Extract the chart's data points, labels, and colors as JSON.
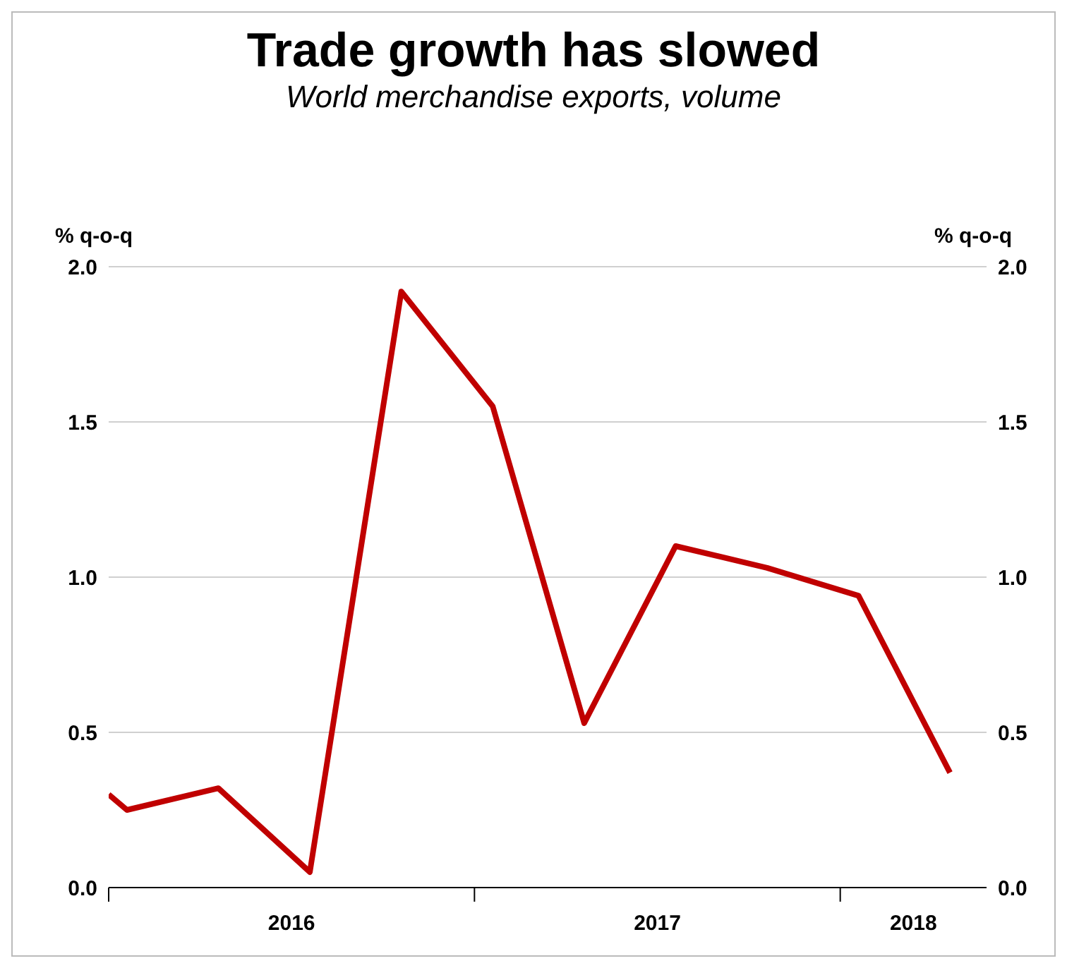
{
  "chart_data": {
    "type": "line",
    "title": "Trade growth has slowed",
    "subtitle": "World merchandise exports, volume",
    "ylabel": "% q-o-q",
    "y2label": "% q-o-q",
    "x": [
      2016,
      2016.05,
      2016.3,
      2016.55,
      2016.8,
      2017.05,
      2017.3,
      2017.55,
      2017.8,
      2018.05,
      2018.3
    ],
    "series": [
      {
        "color": "#c00000",
        "values": [
          0.3,
          0.25,
          0.32,
          0.05,
          1.92,
          1.55,
          0.53,
          1.1,
          1.03,
          0.94,
          0.37
        ]
      }
    ],
    "xlim": [
      2016,
      2018.4
    ],
    "xticks": [
      {
        "value": 2016,
        "label": null
      },
      {
        "value": 2016.5,
        "label": "2016"
      },
      {
        "value": 2017,
        "label": null
      },
      {
        "value": 2017.5,
        "label": "2017"
      },
      {
        "value": 2018,
        "label": null
      },
      {
        "value": 2018.2,
        "label": "2018"
      }
    ],
    "ylim": [
      0,
      2
    ],
    "yticks": [
      {
        "value": 0,
        "label": "0.0"
      },
      {
        "value": 0.5,
        "label": "0.5"
      },
      {
        "value": 1,
        "label": "1.0"
      },
      {
        "value": 1.5,
        "label": "1.5"
      },
      {
        "value": 2,
        "label": "2.0"
      }
    ],
    "y2lim": [
      0,
      2
    ],
    "y2ticks": [
      {
        "value": 0,
        "label": "0.0"
      },
      {
        "value": 0.5,
        "label": "0.5"
      },
      {
        "value": 1,
        "label": "1.0"
      },
      {
        "value": 1.5,
        "label": "1.5"
      },
      {
        "value": 2,
        "label": "2.0"
      }
    ],
    "grid": "y",
    "legend": false,
    "marker": "none",
    "line_style": "solid"
  }
}
